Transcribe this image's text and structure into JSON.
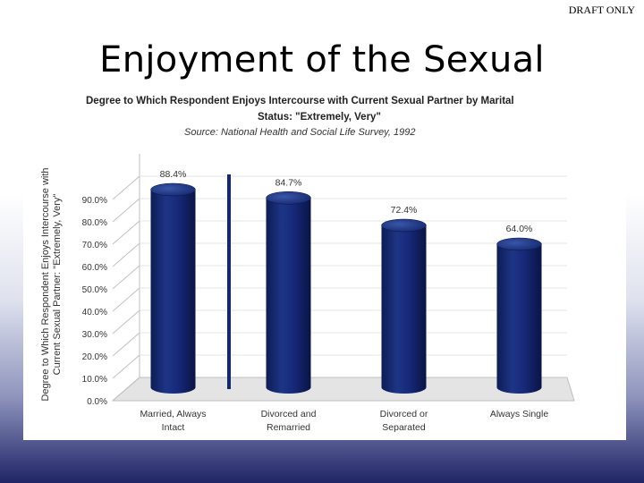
{
  "watermark": "DRAFT ONLY",
  "slide_title": "Enjoyment of the Sexual",
  "colors": {
    "bar": "#14286f",
    "bar_highlight": "#3a56a8",
    "bar_shadow": "#0a1446",
    "floor": "#e4e4e4",
    "wall_line": "#bfbfbf"
  },
  "chart_data": {
    "type": "bar",
    "title_lines": [
      "Degree to Which Respondent Enjoys Intercourse with Current Sexual Partner by Marital",
      "Status: \"Extremely, Very\""
    ],
    "subtitle": "Source: National Health and Social Life Survey, 1992",
    "ylabel_lines": [
      "Degree to Which Respondent Enjoys Intercourse with",
      "Current Sexual Partner: \"Extremely, Very\""
    ],
    "xlabel": "",
    "categories": [
      [
        "Married, Always",
        "Intact"
      ],
      [
        "Divorced and",
        "Remarried"
      ],
      [
        "Divorced or",
        "Separated"
      ],
      [
        "Always Single"
      ]
    ],
    "values": [
      88.4,
      84.7,
      72.4,
      64.0
    ],
    "value_labels": [
      "88.4%",
      "84.7%",
      "72.4%",
      "64.0%"
    ],
    "ylim": [
      0,
      100
    ],
    "yticks": [
      0,
      10,
      20,
      30,
      40,
      50,
      60,
      70,
      80,
      90
    ],
    "ytick_labels": [
      "0.0%",
      "10.0%",
      "20.0%",
      "30.0%",
      "40.0%",
      "50.0%",
      "60.0%",
      "70.0%",
      "80.0%",
      "90.0%"
    ],
    "grid": true,
    "legend": "none"
  }
}
